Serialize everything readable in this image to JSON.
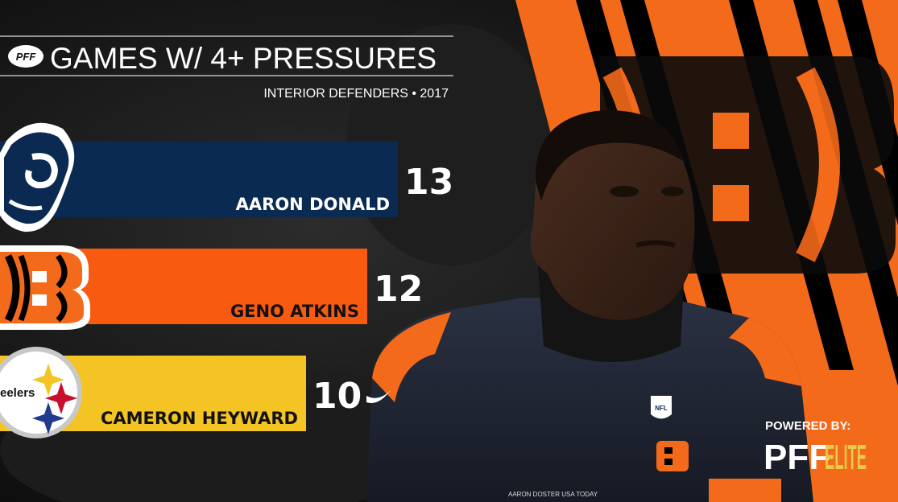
{
  "header": {
    "logo_text": "PFF",
    "title": "GAMES W/ 4+ PRESSURES",
    "subtitle": "INTERIOR DEFENDERS • 2017"
  },
  "colors": {
    "rams_navy": "#002244",
    "bengals_orange": "#FB4F14",
    "steelers_gold": "#FFB612",
    "black": "#000000"
  },
  "chart_data": {
    "type": "bar",
    "orientation": "horizontal",
    "categories": [
      "AARON DONALD",
      "GENO ATKINS",
      "CAMERON HEYWARD"
    ],
    "values": [
      13,
      12,
      10
    ],
    "bar_colors": [
      "#0a2a52",
      "#f85a0f",
      "#f3c423"
    ],
    "team_logos": [
      "rams-logo",
      "bengals-logo",
      "steelers-logo"
    ],
    "steelers_logo_text": "eelers",
    "title": "GAMES W/ 4+ PRESSURES",
    "subtitle": "INTERIOR DEFENDERS • 2017",
    "xlabel": "",
    "ylabel": ""
  },
  "photo": {
    "credit": "AARON DOSTER USA TODAY",
    "helmet_badge": "NFL"
  },
  "watermark": {
    "powered_by": "POWERED BY:",
    "brand": "PFF",
    "tier": "ELITE"
  }
}
